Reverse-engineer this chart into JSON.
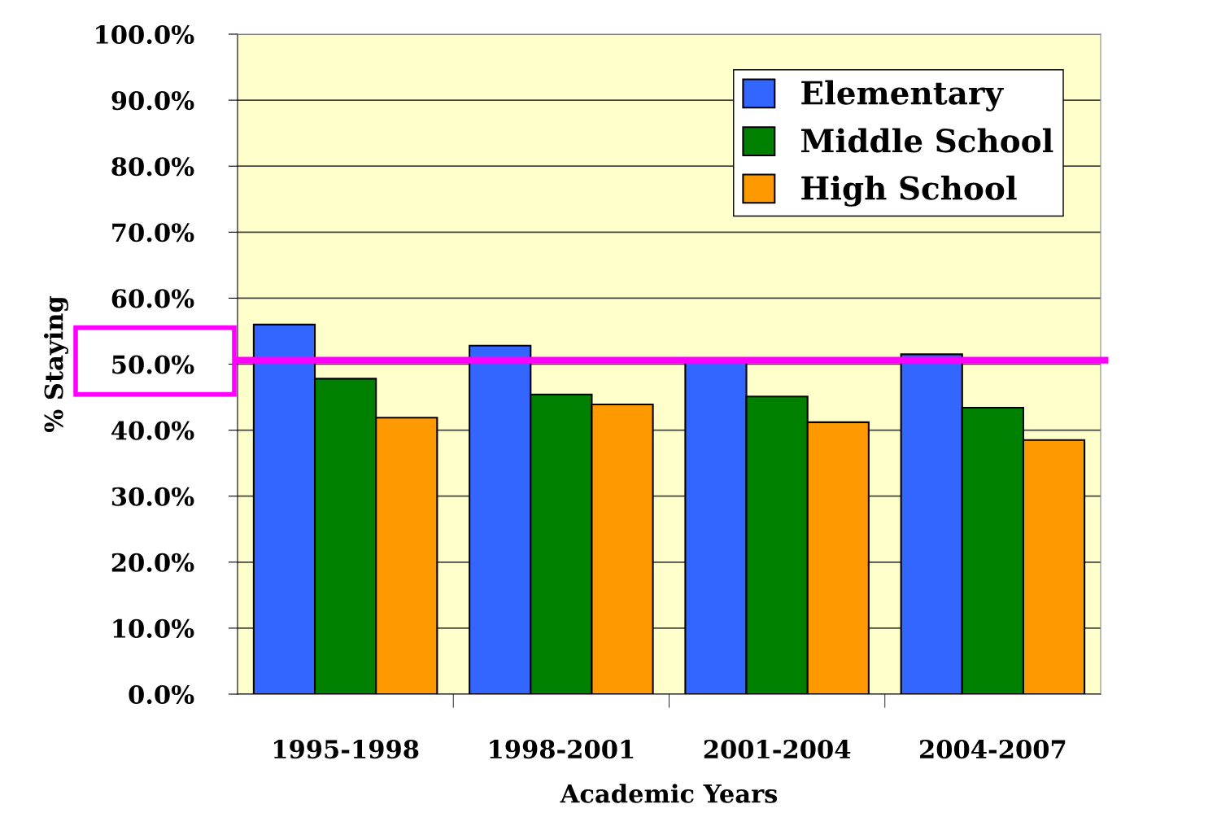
{
  "chart_data": {
    "type": "bar",
    "xlabel": "Academic Years",
    "ylabel": "% Staying",
    "categories": [
      "1995-1998",
      "1998-2001",
      "2001-2004",
      "2004-2007"
    ],
    "series": [
      {
        "name": "Elementary",
        "color": "#3366ff",
        "values": [
          56.0,
          52.8,
          50.4,
          51.5
        ]
      },
      {
        "name": "Middle School",
        "color": "#008000",
        "values": [
          47.8,
          45.4,
          45.1,
          43.4
        ]
      },
      {
        "name": "High School",
        "color": "#ff9900",
        "values": [
          41.9,
          43.9,
          41.2,
          38.5
        ]
      }
    ],
    "ylim": [
      0,
      100
    ],
    "yticks": [
      {
        "value": 0,
        "label": "0.0%"
      },
      {
        "value": 10,
        "label": "10.0%"
      },
      {
        "value": 20,
        "label": "20.0%"
      },
      {
        "value": 30,
        "label": "30.0%"
      },
      {
        "value": 40,
        "label": "40.0%"
      },
      {
        "value": 50,
        "label": "50.0%"
      },
      {
        "value": 60,
        "label": "60.0%"
      },
      {
        "value": 70,
        "label": "70.0%"
      },
      {
        "value": 80,
        "label": "80.0%"
      },
      {
        "value": 90,
        "label": "90.0%"
      },
      {
        "value": 100,
        "label": "100.0%"
      }
    ],
    "grid": "y",
    "legend": "top right",
    "ref_lines": [
      {
        "axis": "y",
        "value": 50.6,
        "color": "#ff00ff"
      }
    ]
  }
}
